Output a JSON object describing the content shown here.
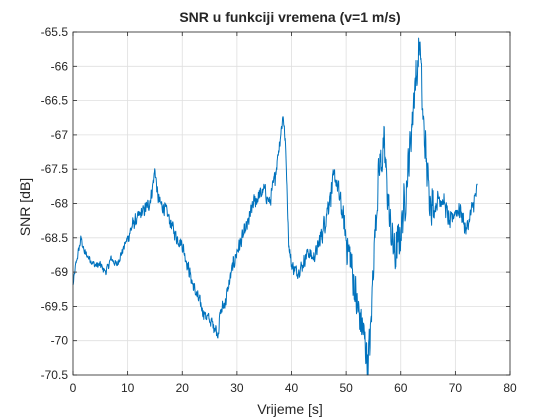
{
  "chart_data": {
    "type": "line",
    "title": "SNR u funkciji vremena (v=1 m/s)",
    "xlabel": "Vrijeme [s]",
    "ylabel": "SNR [dB]",
    "xlim": [
      0,
      80
    ],
    "ylim": [
      -70.5,
      -65.5
    ],
    "xticks": [
      0,
      10,
      20,
      30,
      40,
      50,
      60,
      70,
      80
    ],
    "xtick_labels": [
      "0",
      "10",
      "20",
      "30",
      "40",
      "50",
      "60",
      "70",
      "80"
    ],
    "yticks": [
      -70.5,
      -70,
      -69.5,
      -69,
      -68.5,
      -68,
      -67.5,
      -67,
      -66.5,
      -66,
      -65.5
    ],
    "ytick_labels": [
      "-70.5",
      "-70",
      "-69.5",
      "-69",
      "-68.5",
      "-68",
      "-67.5",
      "-67",
      "-66.5",
      "-66",
      "-65.5"
    ],
    "grid": true,
    "line_color": "#0072BD",
    "series": [
      {
        "x": [
          0,
          0.5,
          1,
          1.5,
          2,
          3,
          4,
          5,
          6,
          7,
          8,
          9,
          10,
          11,
          12,
          13,
          14,
          14.5,
          15,
          15.5,
          16,
          17,
          18,
          19,
          20,
          21,
          22,
          23,
          24,
          25,
          26,
          26.5,
          27,
          28,
          29,
          30,
          31,
          32,
          33,
          34,
          35,
          36,
          37,
          38,
          38.5,
          39,
          39.5,
          40,
          41,
          42,
          43,
          44,
          45,
          46,
          47,
          48,
          49,
          50,
          51,
          52,
          53,
          54,
          54.5,
          55,
          56,
          57,
          58,
          59,
          60,
          61,
          62,
          62.5,
          63,
          63.5,
          64,
          65,
          66,
          67,
          68,
          69,
          70,
          71,
          72,
          73,
          74
        ],
        "y": [
          -69.2,
          -68.9,
          -68.7,
          -68.5,
          -68.7,
          -68.8,
          -68.9,
          -68.9,
          -69.0,
          -68.8,
          -68.9,
          -68.7,
          -68.5,
          -68.3,
          -68.2,
          -68.1,
          -68.0,
          -67.8,
          -67.5,
          -67.9,
          -68.0,
          -68.1,
          -68.3,
          -68.5,
          -68.6,
          -68.9,
          -69.2,
          -69.4,
          -69.6,
          -69.7,
          -69.8,
          -69.9,
          -69.6,
          -69.4,
          -69.0,
          -68.7,
          -68.5,
          -68.3,
          -68.0,
          -67.9,
          -67.8,
          -68.0,
          -67.6,
          -67.0,
          -66.7,
          -67.3,
          -68.6,
          -68.9,
          -69.0,
          -68.9,
          -68.7,
          -68.8,
          -68.6,
          -68.3,
          -67.9,
          -67.6,
          -68.0,
          -68.5,
          -68.9,
          -69.5,
          -69.8,
          -70.3,
          -69.9,
          -68.8,
          -67.5,
          -67.2,
          -68.3,
          -68.8,
          -68.4,
          -67.8,
          -66.9,
          -66.3,
          -66.1,
          -65.6,
          -66.7,
          -67.7,
          -68.1,
          -67.9,
          -68.0,
          -68.3,
          -68.1,
          -68.1,
          -68.4,
          -68.1,
          -67.8
        ]
      }
    ]
  }
}
